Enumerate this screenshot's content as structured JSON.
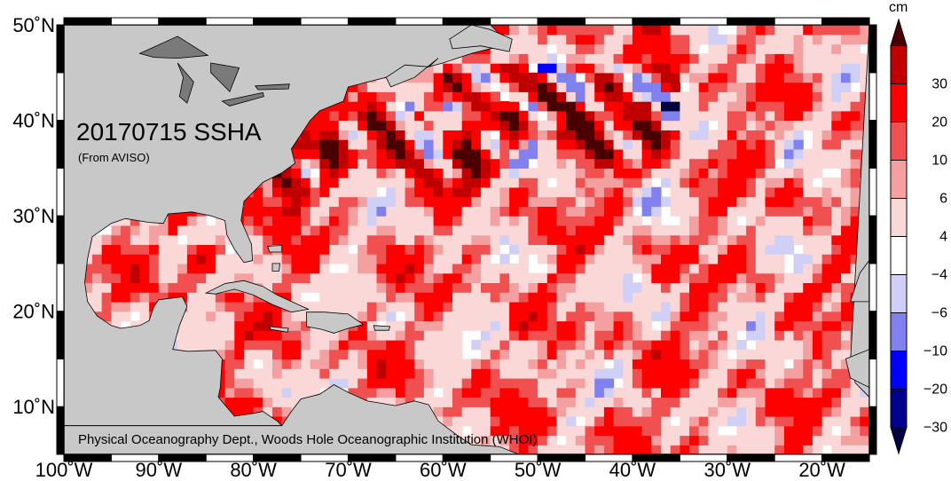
{
  "map": {
    "title": "20170715 SSHA",
    "source": "(From AVISO)",
    "credit": "Physical Oceanography Dept., Woods Hole Oceanographic Institution (WHOI)",
    "lon_range": [
      -100,
      -15
    ],
    "lat_range": [
      5,
      50
    ],
    "lon_ticks": [
      {
        "value": -100,
        "label": "100˚W"
      },
      {
        "value": -90,
        "label": "90˚W"
      },
      {
        "value": -80,
        "label": "80˚W"
      },
      {
        "value": -70,
        "label": "70˚W"
      },
      {
        "value": -60,
        "label": "60˚W"
      },
      {
        "value": -50,
        "label": "50˚W"
      },
      {
        "value": -40,
        "label": "40˚W"
      },
      {
        "value": -30,
        "label": "30˚W"
      },
      {
        "value": -20,
        "label": "20˚W"
      }
    ],
    "lat_ticks": [
      {
        "value": 50,
        "label": "50˚N"
      },
      {
        "value": 40,
        "label": "40˚N"
      },
      {
        "value": 30,
        "label": "30˚N"
      },
      {
        "value": 20,
        "label": "20˚N"
      },
      {
        "value": 10,
        "label": "10˚N"
      }
    ],
    "colors": {
      "land": "#c8c8c8",
      "lakes": "#7a7a7a",
      "ocean_neutral": "#ffffff"
    }
  },
  "colorbar": {
    "unit": "cm",
    "labels": [
      "30",
      "20",
      "10",
      "6",
      "4",
      "−4",
      "−6",
      "−10",
      "−20",
      "−30"
    ],
    "colors": [
      "#4a0000",
      "#c00000",
      "#ff0000",
      "#f05050",
      "#f4a0a0",
      "#fbd8d8",
      "#ffffff",
      "#d0d0f6",
      "#8080ee",
      "#0000ff",
      "#00008c",
      "#000040"
    ]
  }
}
